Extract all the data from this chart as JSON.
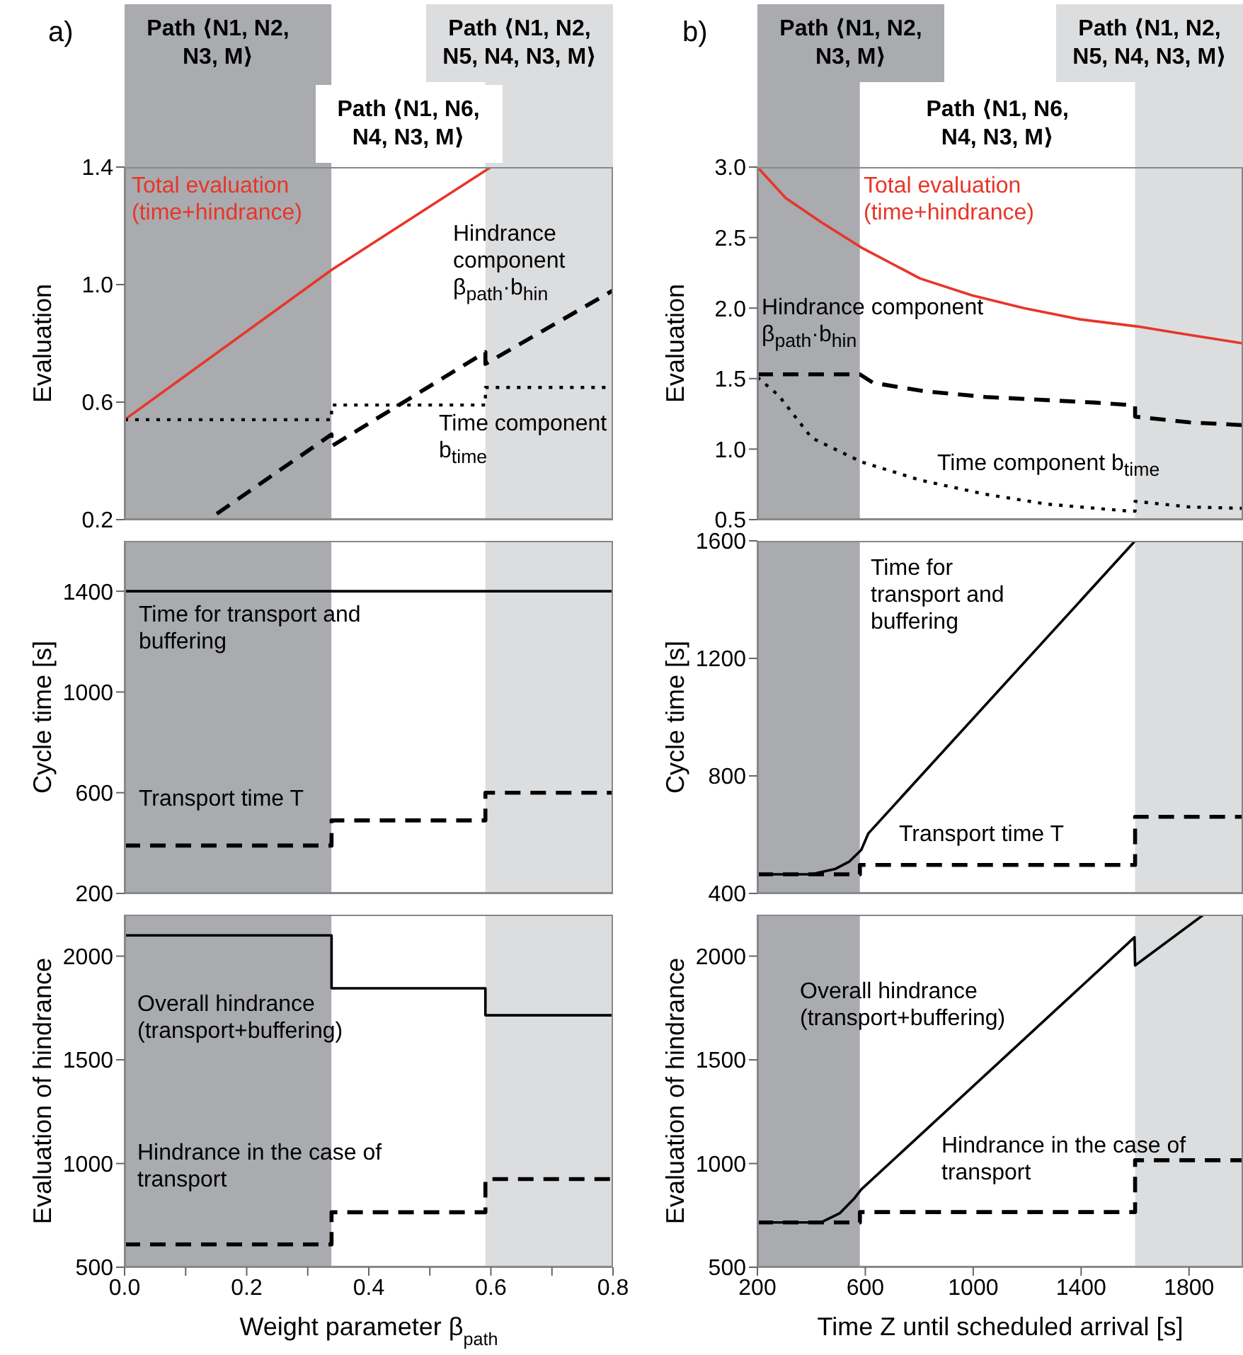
{
  "chart_data": [
    {
      "type": "line",
      "title": "a)",
      "ylabel": "Evaluation",
      "xlim": [
        0,
        0.8
      ],
      "ylim": [
        0.2,
        1.4
      ],
      "yticks": [
        0.2,
        0.6,
        {
          "value": 1,
          "label": "1.0"
        },
        1.4
      ],
      "tick_labels": "y",
      "marker": "none",
      "bands": [
        {
          "axis": "x",
          "from": 0,
          "to": 0.339,
          "label": "Path ⟨N1, N2, N3, M⟩",
          "color": "#a9abae"
        },
        {
          "axis": "x",
          "from": 0.339,
          "to": 0.591,
          "label": "Path ⟨N1, N6, N4, N3, M⟩",
          "color": "#ffffff"
        },
        {
          "axis": "x",
          "from": 0.591,
          "to": 0.8,
          "label": "Path ⟨N1, N2, N5, N4, N3, M⟩",
          "color": "#dcdddf"
        }
      ],
      "series": [
        {
          "name": "Total evaluation (time+hindrance)",
          "color": "#e8352a",
          "line_style": "solid",
          "x": [
            0,
            0.339,
            0.6
          ],
          "values": [
            0.54,
            1.05,
            1.4
          ]
        },
        {
          "name": "Hindrance component β$_{path}$·b$_{hin}$",
          "color": "#000000",
          "line_style": "dashed",
          "x": [
            0.151,
            0.339,
            0.339,
            0.591,
            0.591,
            0.8
          ],
          "values": [
            0.22,
            0.49,
            0.45,
            0.77,
            0.73,
            0.98
          ]
        },
        {
          "name": "Time component b$_{time}$",
          "color": "#000000",
          "line_style": "dotted",
          "x": [
            0,
            0.339,
            0.339,
            0.591,
            0.591,
            0.8
          ],
          "values": [
            0.54,
            0.54,
            0.59,
            0.59,
            0.65,
            0.65
          ]
        }
      ]
    },
    {
      "type": "line",
      "ylabel": "Cycle time [s]",
      "xlim": [
        0,
        0.8
      ],
      "ylim": [
        200,
        1600
      ],
      "yticks": [
        200,
        600,
        1000,
        1400
      ],
      "tick_labels": "y",
      "marker": "none",
      "bands": [
        {
          "axis": "x",
          "from": 0,
          "to": 0.339,
          "color": "#a9abae"
        },
        {
          "axis": "x",
          "from": 0.339,
          "to": 0.591,
          "color": "#ffffff"
        },
        {
          "axis": "x",
          "from": 0.591,
          "to": 0.8,
          "color": "#dcdddf"
        }
      ],
      "series": [
        {
          "name": "Time for transport and buffering",
          "color": "#000000",
          "line_style": "solid",
          "x": [
            0,
            0.8
          ],
          "values": [
            1400,
            1400
          ]
        },
        {
          "name": "Transport time T",
          "color": "#000000",
          "line_style": "dashed",
          "x": [
            0,
            0.339,
            0.339,
            0.591,
            0.591,
            0.8
          ],
          "values": [
            390,
            390,
            490,
            490,
            600,
            600
          ]
        }
      ]
    },
    {
      "type": "line",
      "xlabel": "Weight parameter β$_{path}$",
      "ylabel": "Evaluation of hindrance",
      "xlim": [
        0,
        0.8
      ],
      "ylim": [
        500,
        2200
      ],
      "xticks": [
        {
          "value": 0,
          "label": "0.0"
        },
        {
          "value": 0.1,
          "label": null
        },
        0.2,
        {
          "value": 0.3,
          "label": null
        },
        0.4,
        {
          "value": 0.5,
          "label": null
        },
        0.6,
        {
          "value": 0.7,
          "label": null
        },
        0.8
      ],
      "yticks": [
        500,
        1000,
        1500,
        2000
      ],
      "marker": "none",
      "bands": [
        {
          "axis": "x",
          "from": 0,
          "to": 0.339,
          "color": "#a9abae"
        },
        {
          "axis": "x",
          "from": 0.339,
          "to": 0.591,
          "color": "#ffffff"
        },
        {
          "axis": "x",
          "from": 0.591,
          "to": 0.8,
          "color": "#dcdddf"
        }
      ],
      "series": [
        {
          "name": "Overall hindrance (transport+buffering)",
          "color": "#000000",
          "line_style": "solid",
          "x": [
            0,
            0.339,
            0.339,
            0.591,
            0.591,
            0.8
          ],
          "values": [
            2100,
            2100,
            1845,
            1845,
            1715,
            1715
          ]
        },
        {
          "name": "Hindrance in the case of transport",
          "color": "#000000",
          "line_style": "dashed",
          "x": [
            0,
            0.339,
            0.339,
            0.591,
            0.591,
            0.8
          ],
          "values": [
            610,
            610,
            765,
            765,
            925,
            925
          ]
        }
      ]
    },
    {
      "type": "line",
      "title": "b)",
      "ylabel": "Evaluation",
      "xlim": [
        200,
        2000
      ],
      "ylim": [
        0.5,
        3.0
      ],
      "yticks": [
        0.5,
        {
          "value": 1,
          "label": "1.0"
        },
        1.5,
        {
          "value": 2,
          "label": "2.0"
        },
        2.5,
        {
          "value": 3,
          "label": "3.0"
        }
      ],
      "tick_labels": "y",
      "marker": "none",
      "bands": [
        {
          "axis": "x",
          "from": 200,
          "to": 580,
          "label": "Path ⟨N1, N2, N3, M⟩",
          "color": "#a9abae"
        },
        {
          "axis": "x",
          "from": 580,
          "to": 1600,
          "label": "Path ⟨N1, N6, N4, N3, M⟩",
          "color": "#ffffff"
        },
        {
          "axis": "x",
          "from": 1600,
          "to": 2000,
          "label": "Path ⟨N1, N2, N5, N4, N3, M⟩",
          "color": "#dcdddf"
        }
      ],
      "series": [
        {
          "name": "Total evaluation (time+hindrance)",
          "color": "#e8352a",
          "line_style": "solid",
          "x": [
            200,
            305,
            436,
            585,
            803,
            996,
            1188,
            1397,
            1608,
            1800,
            2000
          ],
          "values": [
            3.0,
            2.78,
            2.61,
            2.43,
            2.21,
            2.09,
            2.0,
            1.92,
            1.87,
            1.81,
            1.75
          ]
        },
        {
          "name": "Hindrance component β$_{path}$·b$_{hin}$",
          "color": "#000000",
          "line_style": "dashed",
          "x": [
            200,
            580,
            629,
            821,
            1045,
            1450,
            1600,
            1600,
            1800,
            2000
          ],
          "values": [
            1.53,
            1.53,
            1.47,
            1.41,
            1.37,
            1.33,
            1.31,
            1.23,
            1.19,
            1.17
          ]
        },
        {
          "name": "Time component b$_{time}$",
          "color": "#000000",
          "line_style": "dotted",
          "x": [
            200,
            279,
            401,
            585,
            803,
            1045,
            1273,
            1580,
            1600,
            1600,
            1800,
            2000
          ],
          "values": [
            1.51,
            1.38,
            1.08,
            0.91,
            0.78,
            0.68,
            0.61,
            0.56,
            0.56,
            0.63,
            0.59,
            0.58
          ]
        }
      ]
    },
    {
      "type": "line",
      "ylabel": "Cycle time [s]",
      "xlim": [
        200,
        2000
      ],
      "ylim": [
        400,
        1600
      ],
      "yticks": [
        400,
        800,
        1200,
        1600
      ],
      "tick_labels": "y",
      "marker": "none",
      "bands": [
        {
          "axis": "x",
          "from": 200,
          "to": 580,
          "color": "#a9abae"
        },
        {
          "axis": "x",
          "from": 580,
          "to": 1600,
          "color": "#ffffff"
        },
        {
          "axis": "x",
          "from": 1600,
          "to": 2000,
          "color": "#dcdddf"
        }
      ],
      "series": [
        {
          "name": "Time for transport and buffering",
          "color": "#000000",
          "line_style": "solid",
          "x": [
            200,
            400,
            490,
            540,
            585,
            611,
            1600
          ],
          "values": [
            465,
            465,
            484,
            508,
            548,
            604,
            1600
          ]
        },
        {
          "name": "Transport time T",
          "color": "#000000",
          "line_style": "dashed",
          "x": [
            200,
            580,
            580,
            1600,
            1600,
            2000
          ],
          "values": [
            465,
            465,
            497,
            497,
            661,
            661
          ]
        }
      ]
    },
    {
      "type": "line",
      "xlabel": "Time Z until scheduled arrival [s]",
      "ylabel": "Evaluation of hindrance",
      "xlim": [
        200,
        2000
      ],
      "ylim": [
        500,
        2200
      ],
      "xticks": [
        200,
        600,
        1000,
        1400,
        1800
      ],
      "yticks": [
        500,
        1000,
        1500,
        2000
      ],
      "marker": "none",
      "bands": [
        {
          "axis": "x",
          "from": 200,
          "to": 580,
          "color": "#a9abae"
        },
        {
          "axis": "x",
          "from": 580,
          "to": 1600,
          "color": "#ffffff"
        },
        {
          "axis": "x",
          "from": 1600,
          "to": 2000,
          "color": "#dcdddf"
        }
      ],
      "series": [
        {
          "name": "Overall hindrance (transport+buffering)",
          "color": "#000000",
          "line_style": "solid",
          "x": [
            200,
            436,
            506,
            558,
            585,
            1598,
            1600,
            1852
          ],
          "values": [
            716,
            716,
            761,
            830,
            875,
            2091,
            1955,
            2198
          ]
        },
        {
          "name": "Hindrance in the case of transport",
          "color": "#000000",
          "line_style": "dashed",
          "x": [
            200,
            580,
            580,
            1600,
            1600,
            2000
          ],
          "values": [
            716,
            716,
            766,
            766,
            1016,
            1016
          ]
        }
      ]
    }
  ]
}
